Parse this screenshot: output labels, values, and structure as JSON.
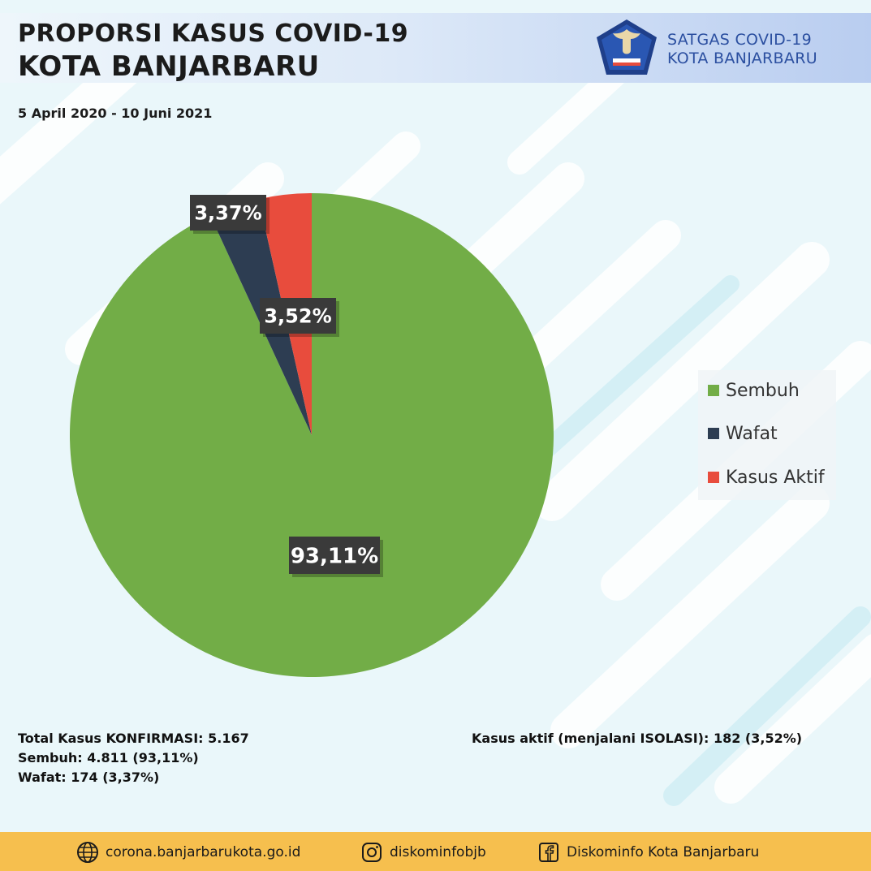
{
  "header": {
    "title_line1": "PROPORSI KASUS COVID-19",
    "title_line2": "KOTA BANJARBARU",
    "date_range": "5 April 2020 - 10 Juni 2021",
    "org_line1": "SATGAS COVID-19",
    "org_line2": "KOTA BANJARBARU",
    "logo_icon": "garuda-emblem-icon"
  },
  "colors": {
    "sembuh": "#72ad47",
    "wafat": "#2d3d52",
    "aktif": "#e84c3d",
    "label_bg": "#3a3a3a",
    "footer": "#f6bf4e",
    "org_text": "#2b4fa0"
  },
  "chart_data": {
    "type": "pie",
    "title": "",
    "labels": [
      "Sembuh",
      "Wafat",
      "Kasus Aktif"
    ],
    "values": [
      93.11,
      3.37,
      3.52
    ],
    "value_labels": [
      "93,11%",
      "3,37%",
      "3,52%"
    ],
    "colors": [
      "#72ad47",
      "#2d3d52",
      "#e84c3d"
    ],
    "legend_position": "right"
  },
  "stats": {
    "total": "Total Kasus KONFIRMASI: 5.167",
    "sembuh": "Sembuh: 4.811 (93,11%)",
    "wafat": "Wafat: 174 (3,37%)",
    "aktif": "Kasus aktif (menjalani ISOLASI): 182 (3,52%)"
  },
  "footer": {
    "website": "corona.banjarbarukota.go.id",
    "instagram": "diskominfobjb",
    "facebook": "Diskominfo Kota Banjarbaru",
    "website_icon": "globe-icon",
    "instagram_icon": "instagram-icon",
    "facebook_icon": "facebook-icon"
  }
}
